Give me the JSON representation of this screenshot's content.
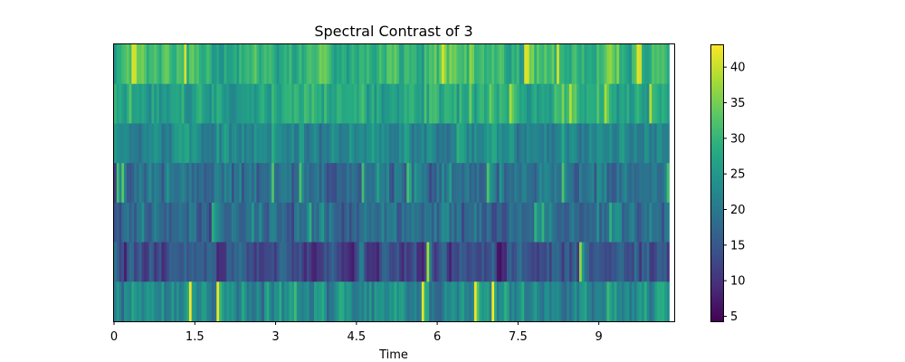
{
  "chart_data": {
    "type": "heatmap",
    "title": "Spectral Contrast of 3",
    "xlabel": "Time",
    "ylabel": "",
    "x_range": [
      0,
      10.4
    ],
    "x_ticks": [
      {
        "value": 0,
        "label": "0"
      },
      {
        "value": 1.5,
        "label": "1.5"
      },
      {
        "value": 3,
        "label": "3"
      },
      {
        "value": 4.5,
        "label": "4.5"
      },
      {
        "value": 6,
        "label": "6"
      },
      {
        "value": 7.5,
        "label": "7.5"
      },
      {
        "value": 9,
        "label": "9"
      }
    ],
    "bands": 7,
    "frames": 224,
    "colorbar": {
      "colormap": "viridis",
      "range": [
        4.3,
        43.2
      ],
      "ticks": [
        {
          "value": 5,
          "label": "5"
        },
        {
          "value": 10,
          "label": "10"
        },
        {
          "value": 15,
          "label": "15"
        },
        {
          "value": 20,
          "label": "20"
        },
        {
          "value": 25,
          "label": "25"
        },
        {
          "value": 30,
          "label": "30"
        },
        {
          "value": 35,
          "label": "35"
        },
        {
          "value": 40,
          "label": "40"
        }
      ]
    },
    "band_stats": [
      {
        "band": 6,
        "mean": 30,
        "spread": 4.5,
        "min": 24,
        "max": 42
      },
      {
        "band": 5,
        "mean": 28,
        "spread": 4,
        "min": 22,
        "max": 39
      },
      {
        "band": 4,
        "mean": 22.5,
        "spread": 3.5,
        "min": 15,
        "max": 30
      },
      {
        "band": 3,
        "mean": 19,
        "spread": 4.5,
        "min": 11,
        "max": 33
      },
      {
        "band": 2,
        "mean": 18,
        "spread": 4,
        "min": 10,
        "max": 30
      },
      {
        "band": 1,
        "mean": 13.5,
        "spread": 4.5,
        "min": 6,
        "max": 38
      },
      {
        "band": 0,
        "mean": 23,
        "spread": 4.5,
        "min": 16,
        "max": 43
      }
    ]
  }
}
